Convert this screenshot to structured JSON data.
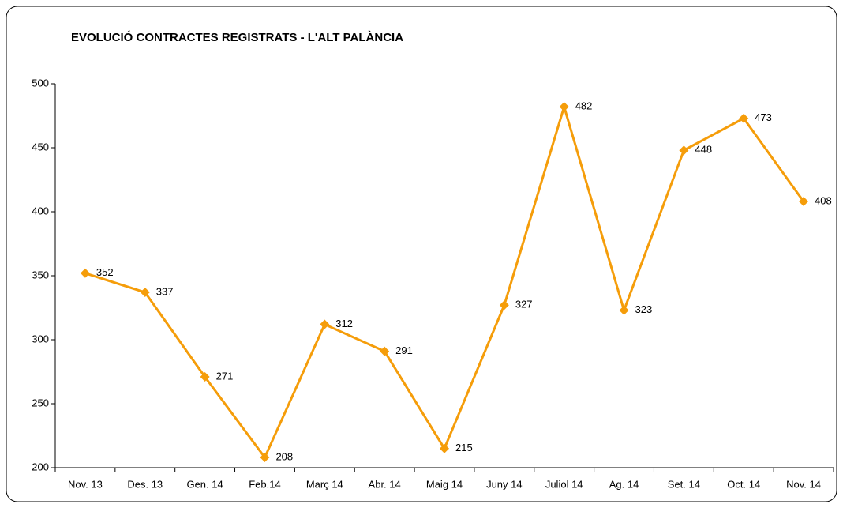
{
  "chart_data": {
    "type": "line",
    "title": "EVOLUCIÓ CONTRACTES REGISTRATS - L'ALT PALÀNCIA",
    "categories": [
      "Nov. 13",
      "Des. 13",
      "Gen. 14",
      "Feb.14",
      "Març 14",
      "Abr. 14",
      "Maig 14",
      "Juny 14",
      "Juliol 14",
      "Ag. 14",
      "Set. 14",
      "Oct. 14",
      "Nov. 14"
    ],
    "values": [
      352,
      337,
      271,
      208,
      312,
      291,
      215,
      327,
      482,
      323,
      448,
      473,
      408
    ],
    "color": "#f59d0a",
    "ylim": [
      200,
      500
    ],
    "yticks": [
      200,
      250,
      300,
      350,
      400,
      450,
      500
    ],
    "grid": false
  }
}
